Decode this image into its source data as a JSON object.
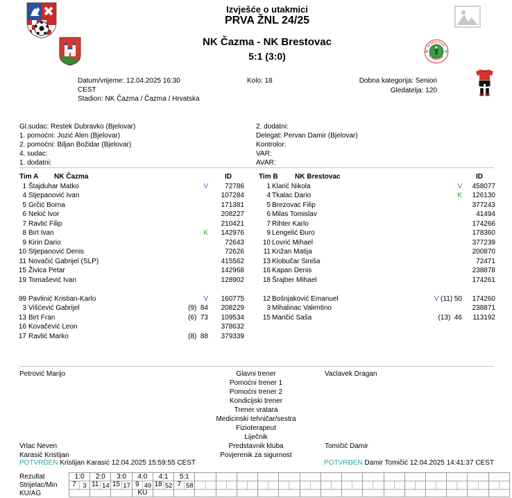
{
  "header": {
    "report_title": "Izvješće o utakmici",
    "competition": "PRVA ŽNL 24/25",
    "match_title": "NK Čazma - NK Brestovac",
    "score": "5:1 (3:0)"
  },
  "icons": {
    "federation_crest": "county-football-federation-crest",
    "home_club_crest": "nk-cazma-town-crest",
    "away_club_logo": "nk-brestovac-logo",
    "photo_placeholder": "photo-placeholder-icon",
    "home_kit": "red-black-kit-icon"
  },
  "match_info": {
    "datetime_line1": "Datum/vrijeme: 12.04.2025 16:30",
    "datetime_line2": "CEST",
    "stadium": "Stadion: NK Čazma / Čazma / Hrvatska",
    "round": "Kolo: 18",
    "category": "Dobna kategorija: Seniori",
    "attendance": "Gledatelja: 120"
  },
  "officials": {
    "left": [
      "Gl.sudac: Restek Dubravko (Bjelovar)",
      "1. pomoćni: Jozić Alen (Bjelovar)",
      "2. pomoćni: Biljan Božidar (Bjelovar)",
      "4. sudac:",
      "1. dodatni:"
    ],
    "right": [
      "2. dodatni:",
      "Delegat: Pervan Damir (Bjelovar)",
      "Kontrolor:",
      "VAR:",
      "AVAR:"
    ]
  },
  "teams": {
    "team_a": {
      "label": "Tim A",
      "name": "NK Čazma",
      "id_header": "ID",
      "starters": [
        {
          "no": "1",
          "name": "Štajduhar Matko",
          "badge": "V",
          "sub": "",
          "id": "72786"
        },
        {
          "no": "4",
          "name": "Stjepanović Ivan",
          "badge": "",
          "sub": "",
          "id": "107284"
        },
        {
          "no": "5",
          "name": "Grčić Borna",
          "badge": "",
          "sub": "",
          "id": "171381"
        },
        {
          "no": "6",
          "name": "Nekić Ivor",
          "badge": "",
          "sub": "",
          "id": "208227"
        },
        {
          "no": "7",
          "name": "Ravlić Filip",
          "badge": "",
          "sub": "",
          "id": "210421"
        },
        {
          "no": "8",
          "name": "Birt Ivan",
          "badge": "K",
          "sub": "",
          "id": "142976"
        },
        {
          "no": "9",
          "name": "Kirin Dario",
          "badge": "",
          "sub": "",
          "id": "72643"
        },
        {
          "no": "10",
          "name": "Stjepanović Denis",
          "badge": "",
          "sub": "",
          "id": "72626"
        },
        {
          "no": "11",
          "name": "Novačić Gabrijel (SLP)",
          "badge": "",
          "sub": "",
          "id": "415562"
        },
        {
          "no": "15",
          "name": "Živica Petar",
          "badge": "",
          "sub": "",
          "id": "142968"
        },
        {
          "no": "19",
          "name": "Tomašević Ivan",
          "badge": "",
          "sub": "",
          "id": "128902"
        }
      ],
      "subs": [
        {
          "no": "99",
          "name": "Pavlinić Kristian-Karlo",
          "badge": "V",
          "sub": "",
          "id": "160775"
        },
        {
          "no": "3",
          "name": "Višćević Gabrijel",
          "badge": "",
          "sub": "(9)  84",
          "id": "208229"
        },
        {
          "no": "13",
          "name": "Birt Fran",
          "badge": "",
          "sub": "(6)  73",
          "id": "109534"
        },
        {
          "no": "16",
          "name": "Kovačević Leon",
          "badge": "",
          "sub": "",
          "id": "378632"
        },
        {
          "no": "17",
          "name": "Ravlić Marko",
          "badge": "",
          "sub": "(8)  88",
          "id": "379339"
        }
      ]
    },
    "team_b": {
      "label": "Tim B",
      "name": "NK Brestovac",
      "id_header": "ID",
      "starters": [
        {
          "no": "1",
          "name": "Klarić Nikola",
          "badge": "V",
          "sub": "",
          "id": "458077"
        },
        {
          "no": "4",
          "name": "Tkalac Dario",
          "badge": "K",
          "sub": "",
          "id": "126130"
        },
        {
          "no": "5",
          "name": "Brezovac Filip",
          "badge": "",
          "sub": "",
          "id": "377243"
        },
        {
          "no": "6",
          "name": "Milas Tomislav",
          "badge": "",
          "sub": "",
          "id": "41494"
        },
        {
          "no": "7",
          "name": "Rihter Karlo",
          "badge": "",
          "sub": "",
          "id": "174266"
        },
        {
          "no": "9",
          "name": "Lengelić Đuro",
          "badge": "",
          "sub": "",
          "id": "178360"
        },
        {
          "no": "10",
          "name": "Lovrić Mihael",
          "badge": "",
          "sub": "",
          "id": "377239"
        },
        {
          "no": "11",
          "name": "Križan Matija",
          "badge": "",
          "sub": "",
          "id": "200870"
        },
        {
          "no": "13",
          "name": "Klobučar Siniša",
          "badge": "",
          "sub": "",
          "id": "72471"
        },
        {
          "no": "16",
          "name": "Kapan Denis",
          "badge": "",
          "sub": "",
          "id": "238878"
        },
        {
          "no": "18",
          "name": "Šrajber Mihael",
          "badge": "",
          "sub": "",
          "id": "174261"
        }
      ],
      "subs": [
        {
          "no": "12",
          "name": "Bošnjaković Emanuel",
          "badge": "V",
          "sub": "(11) 50",
          "id": "174260"
        },
        {
          "no": "3",
          "name": "Mihalinac Valentino",
          "badge": "",
          "sub": "",
          "id": "238871"
        },
        {
          "no": "15",
          "name": "Maričić Saša",
          "badge": "",
          "sub": "(13)  46",
          "id": "113192"
        }
      ]
    }
  },
  "staff": {
    "roles": [
      "Glavni trener",
      "Pomoćni trener 1",
      "Pomoćni trener 2",
      "Kondicijski trener",
      "Trener vratara",
      "Medicinski tehničar/sestra",
      "Fizioterapeut",
      "Liječnik",
      "Predstavnik kluba",
      "Povjerenik za sigurnost"
    ],
    "team_a": [
      "Petrović Marijo",
      "",
      "",
      "",
      "",
      "",
      "",
      "",
      "Vrlac Neven",
      "Karasić Kristijan"
    ],
    "team_b": [
      "Vaclavek Dragan",
      "",
      "",
      "",
      "",
      "",
      "",
      "",
      "Tomičić Damir",
      ""
    ]
  },
  "confirmations": {
    "left": {
      "status": "POTVRĐEN",
      "text": " Kristijan Karasić 12.04.2025 15:59:55 CEST"
    },
    "right": {
      "status": "POTVRĐEN",
      "text": " Damir Tomičić 12.04.2025 14:41:37 CEST"
    }
  },
  "score_table": {
    "row_labels": [
      "Rezultat",
      "Strijelac/Min",
      "KU/AG"
    ],
    "events": [
      {
        "result": "1:0",
        "scorer": "7",
        "minute": "3",
        "ku_ag": ""
      },
      {
        "result": "2:0",
        "scorer": "11",
        "minute": "14",
        "ku_ag": ""
      },
      {
        "result": "3:0",
        "scorer": "15",
        "minute": "17",
        "ku_ag": ""
      },
      {
        "result": "4:0",
        "scorer": "9",
        "minute": "49",
        "ku_ag": "KU"
      },
      {
        "result": "4:1",
        "scorer": "18",
        "minute": "52",
        "ku_ag": ""
      },
      {
        "result": "5:1",
        "scorer": "7",
        "minute": "58",
        "ku_ag": ""
      }
    ],
    "empty_columns": 15
  },
  "colors": {
    "confirmed_teal": "#2FA8A8",
    "goalkeeper_v": "#5A5AC0",
    "captain_k": "#2E9E2E",
    "kit_red": "#D83028"
  }
}
